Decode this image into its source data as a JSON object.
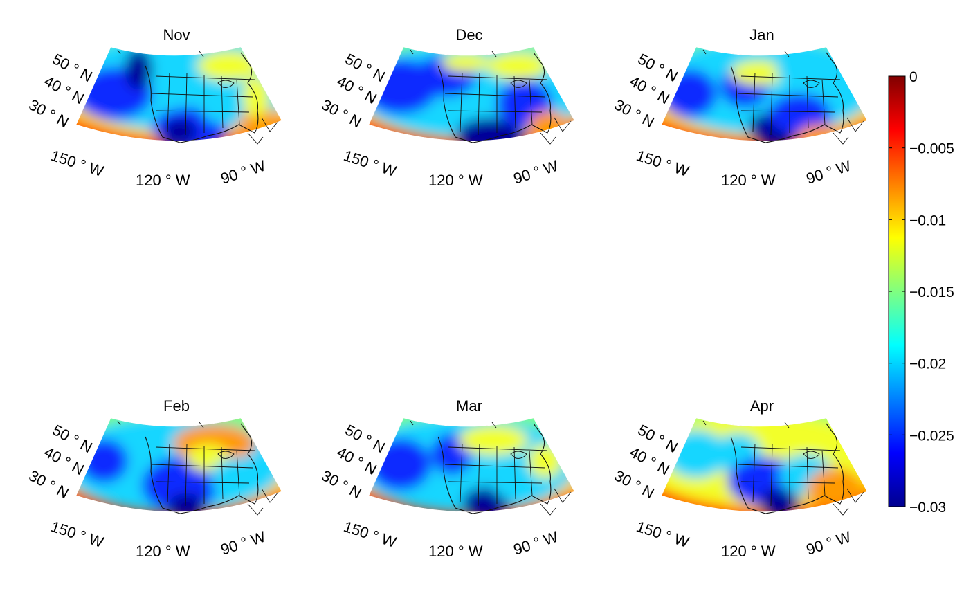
{
  "panels": [
    {
      "title": "Nov",
      "variant": 0
    },
    {
      "title": "Dec",
      "variant": 1
    },
    {
      "title": "Jan",
      "variant": 2
    },
    {
      "title": "Feb",
      "variant": 3
    },
    {
      "title": "Mar",
      "variant": 4
    },
    {
      "title": "Apr",
      "variant": 5
    }
  ],
  "map_labels": {
    "lat": [
      "50 ° N",
      "40 ° N",
      "30 ° N"
    ],
    "lon": [
      "150 ° W",
      "120 ° W",
      "90 ° W"
    ]
  },
  "colorbar": {
    "min": -0.03,
    "max": 0,
    "ticks": [
      "0",
      "−0.005",
      "−0.01",
      "−0.015",
      "−0.02",
      "−0.025",
      "−0.03"
    ],
    "colormap": "jet",
    "colors": [
      "#00008f",
      "#0000ff",
      "#0080ff",
      "#00ffff",
      "#80ff80",
      "#ffff00",
      "#ff8000",
      "#ff0000",
      "#800000"
    ]
  }
}
